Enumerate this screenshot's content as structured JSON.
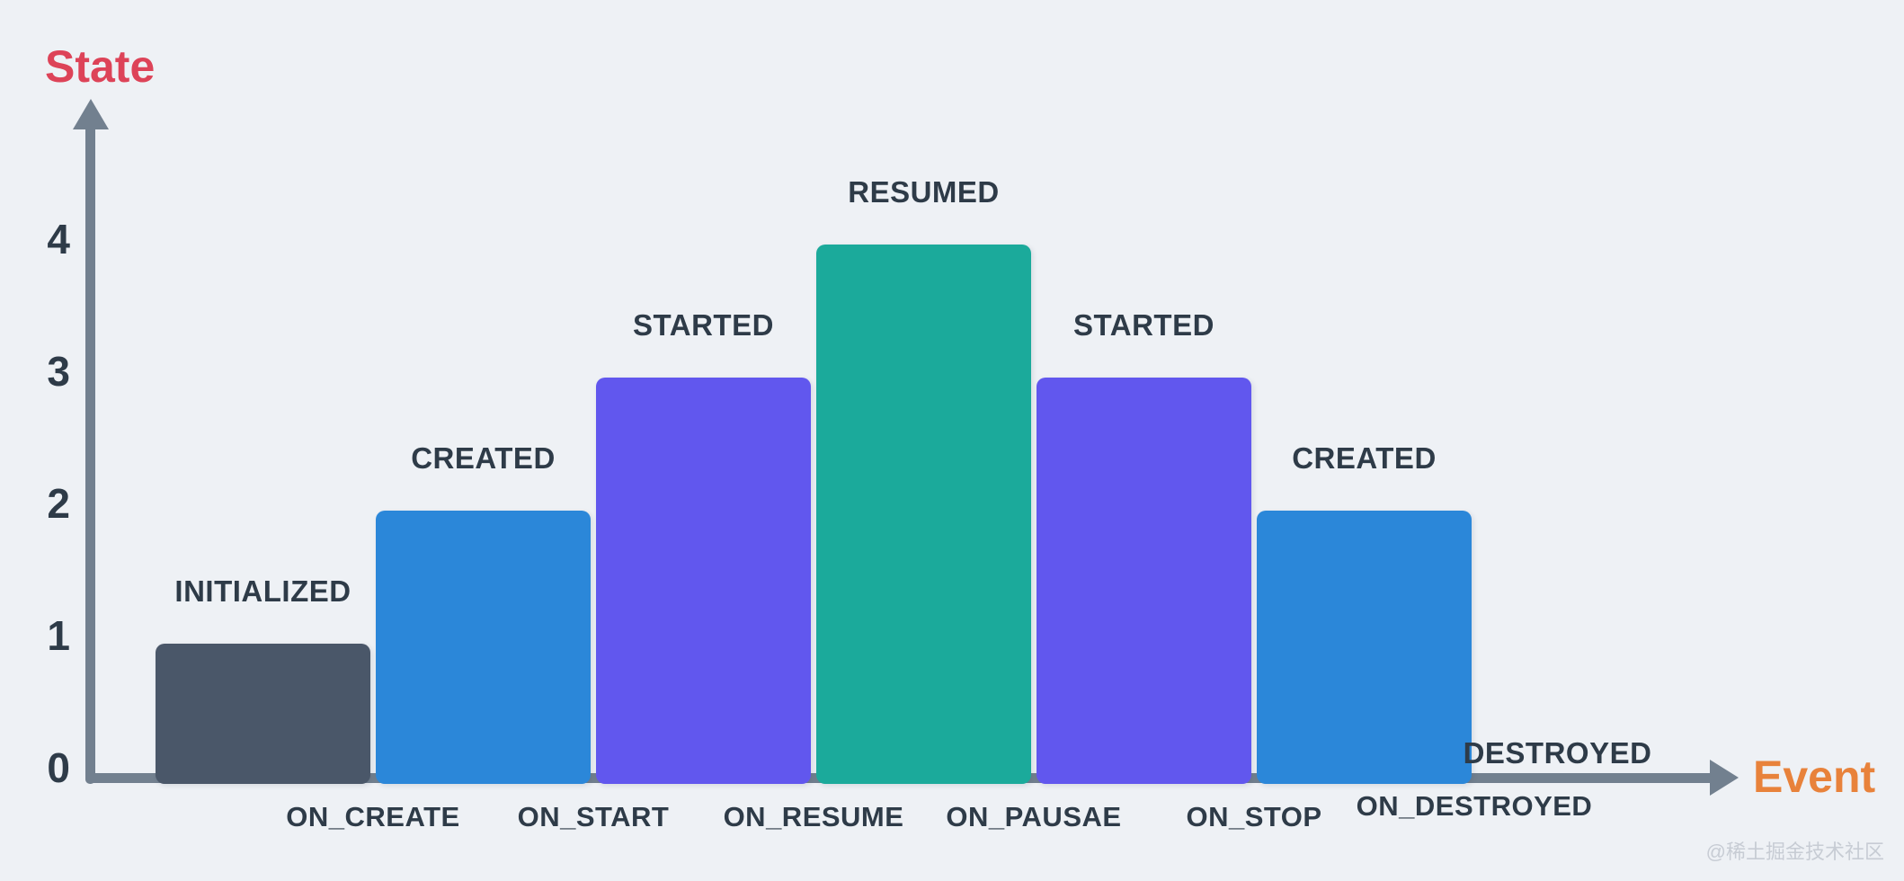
{
  "page": {
    "watermark": "@稀土掘金技术社区",
    "watermark_color": "#c7ccd4",
    "background": "#eef1f5"
  },
  "chart_data": {
    "type": "bar",
    "title": "",
    "ylabel": "State",
    "xlabel": "Event",
    "ylim": [
      0,
      4
    ],
    "yticks": [
      0,
      1,
      2,
      3,
      4
    ],
    "grid": false,
    "legend": null,
    "bars": [
      {
        "label": "INITIALIZED",
        "value": 1,
        "color": "#4a5769"
      },
      {
        "label": "CREATED",
        "value": 2,
        "color": "#2b87d9"
      },
      {
        "label": "STARTED",
        "value": 3,
        "color": "#6157ee"
      },
      {
        "label": "RESUMED",
        "value": 4,
        "color": "#1baa9b"
      },
      {
        "label": "STARTED",
        "value": 3,
        "color": "#6157ee"
      },
      {
        "label": "CREATED",
        "value": 2,
        "color": "#2b87d9"
      },
      {
        "label": "DESTROYED",
        "value": 0,
        "color": null
      }
    ],
    "events": [
      "ON_CREATE",
      "ON_START",
      "ON_RESUME",
      "ON_PAUSAE",
      "ON_STOP",
      "ON_DESTROYED"
    ],
    "axis_colors": {
      "ylabel": "#dd4358",
      "xlabel": "#e8823b",
      "axis": "#72808f",
      "text": "#2e3b48"
    },
    "layout_hints": {
      "bar_labels": "above bars",
      "event_labels": "below axis, centered on transitions between bars"
    }
  }
}
